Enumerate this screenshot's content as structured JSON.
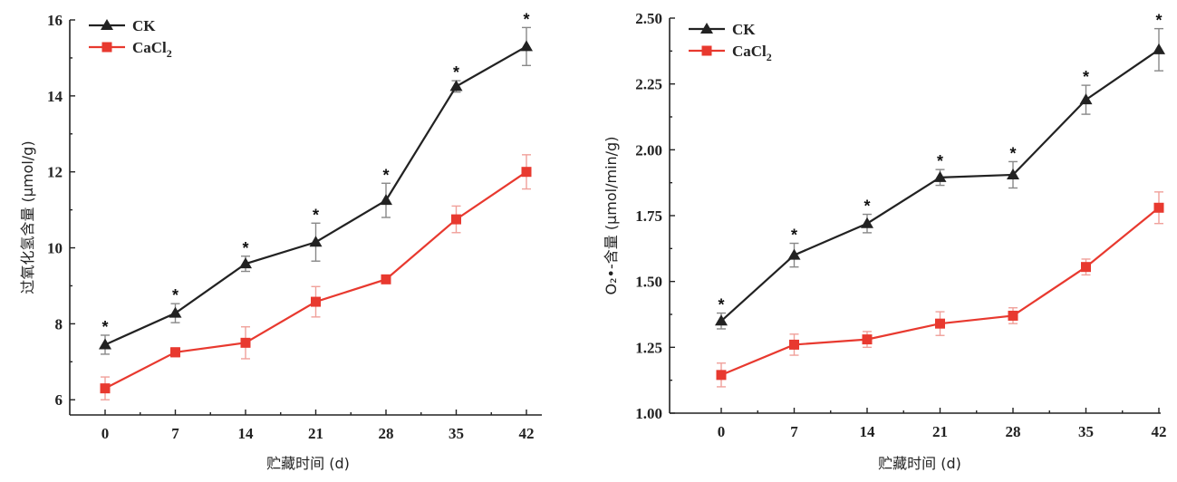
{
  "colors": {
    "ck": "#222222",
    "cacl2": "#e8392f",
    "ck_err": "#888888",
    "cacl2_err": "#f0a09a"
  },
  "chart_data": [
    {
      "type": "line",
      "xlabel": "贮藏时间 (d)",
      "ylabel": "过氧化氢含量 (μmol/g)",
      "categories": [
        "0",
        "7",
        "14",
        "21",
        "28",
        "35",
        "42"
      ],
      "ylim": [
        5.6,
        16
      ],
      "yticks": [
        "6",
        "8",
        "10",
        "12",
        "14",
        "16"
      ],
      "ytick_values": [
        6,
        8,
        10,
        12,
        14,
        16
      ],
      "series": [
        {
          "name": "CK",
          "marker": "triangle",
          "values": [
            7.45,
            8.28,
            9.58,
            10.15,
            11.25,
            14.25,
            15.3
          ],
          "errors": [
            0.25,
            0.25,
            0.2,
            0.5,
            0.45,
            0.15,
            0.5
          ]
        },
        {
          "name": "CaCl2",
          "marker": "square",
          "values": [
            6.3,
            7.25,
            7.5,
            8.58,
            9.17,
            10.75,
            12.0
          ],
          "errors": [
            0.3,
            0.12,
            0.42,
            0.4,
            0.1,
            0.35,
            0.45
          ]
        }
      ],
      "significance": [
        "*",
        "*",
        "*",
        "*",
        "*",
        "*",
        "*"
      ]
    },
    {
      "type": "line",
      "xlabel": "贮藏时间 (d)",
      "ylabel": "O₂•-含量 (μmol/min/g)",
      "categories": [
        "0",
        "7",
        "14",
        "21",
        "28",
        "35",
        "42"
      ],
      "ylim": [
        1.0,
        2.5
      ],
      "yticks": [
        "1.00",
        "1.25",
        "1.50",
        "1.75",
        "2.00",
        "2.25",
        "2.50"
      ],
      "ytick_values": [
        1.0,
        1.25,
        1.5,
        1.75,
        2.0,
        2.25,
        2.5
      ],
      "series": [
        {
          "name": "CK",
          "marker": "triangle",
          "values": [
            1.35,
            1.6,
            1.72,
            1.895,
            1.905,
            2.19,
            2.38
          ],
          "errors": [
            0.03,
            0.045,
            0.035,
            0.03,
            0.05,
            0.055,
            0.08
          ]
        },
        {
          "name": "CaCl2",
          "marker": "square",
          "values": [
            1.145,
            1.26,
            1.28,
            1.34,
            1.37,
            1.555,
            1.78
          ],
          "errors": [
            0.045,
            0.04,
            0.03,
            0.045,
            0.03,
            0.03,
            0.06
          ]
        }
      ],
      "significance": [
        "*",
        "*",
        "*",
        "*",
        "*",
        "*",
        "*"
      ]
    }
  ]
}
